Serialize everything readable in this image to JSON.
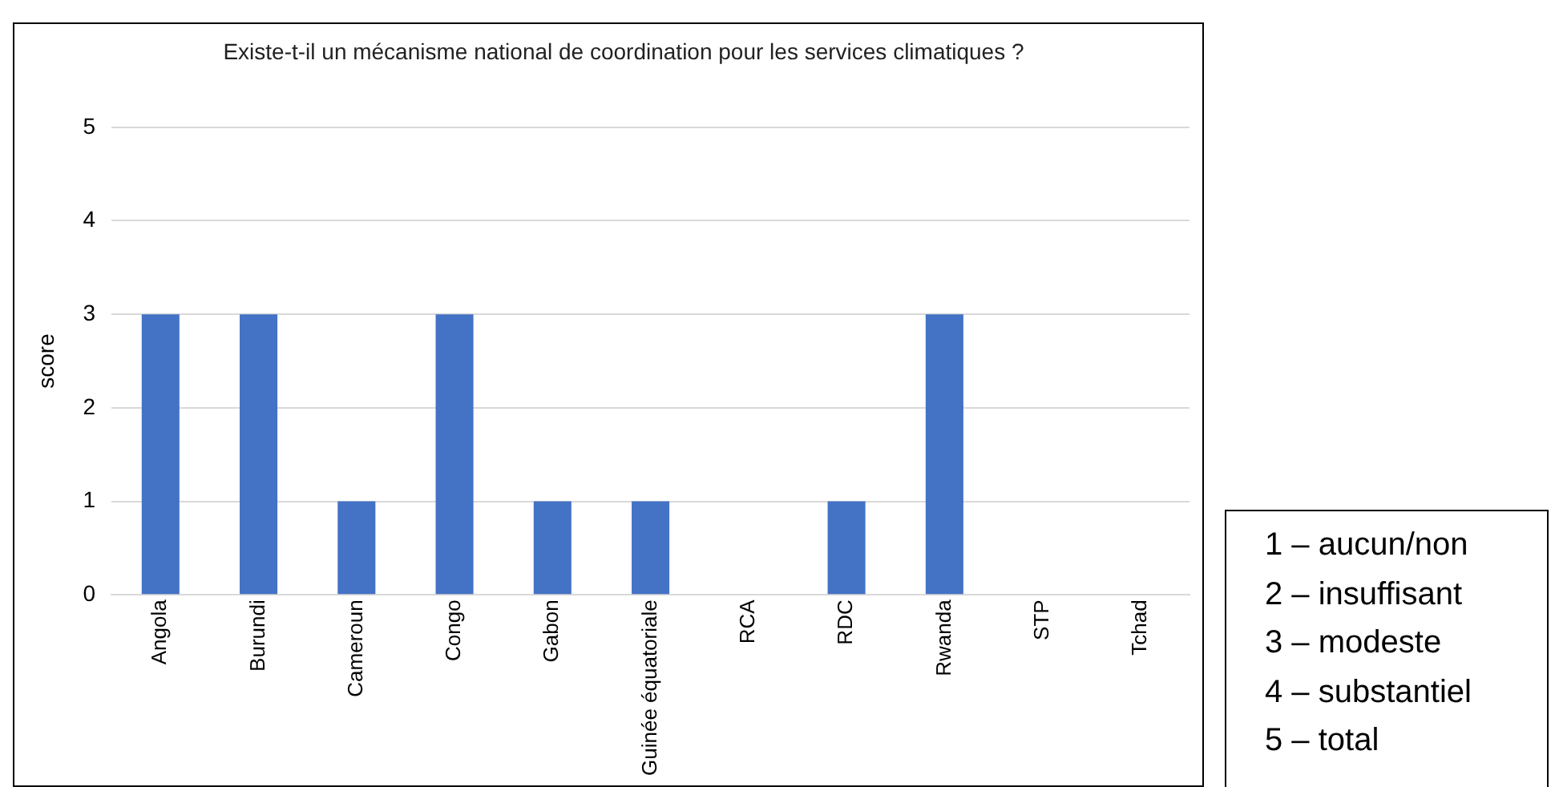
{
  "chart_data": {
    "type": "bar",
    "title": "Existe-t-il un mécanisme national de coordination pour les services climatiques ?",
    "ylabel": "score",
    "categories": [
      "Angola",
      "Burundi",
      "Cameroun",
      "Congo",
      "Gabon",
      "Guinée équatoriale",
      "RCA",
      "RDC",
      "Rwanda",
      "STP",
      "Tchad"
    ],
    "values": [
      3,
      3,
      1,
      3,
      1,
      1,
      0,
      1,
      3,
      0,
      0
    ],
    "color": "#4472c4",
    "ylim": [
      0,
      5
    ],
    "yticks": [
      0,
      1,
      2,
      3,
      4,
      5
    ],
    "grid": "y",
    "legend": false,
    "annotations": [
      "1 – aucun/non",
      "2 – insuffisant",
      "3 – modeste",
      "4 – substantiel",
      "5 – total"
    ]
  }
}
